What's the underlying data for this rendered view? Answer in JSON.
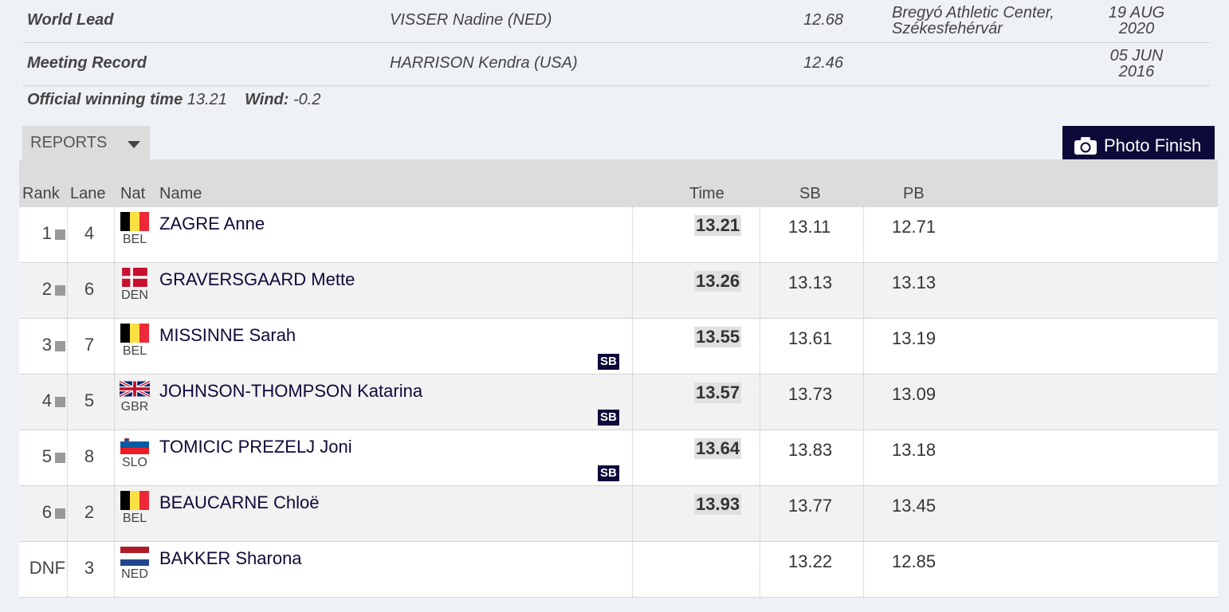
{
  "records": [
    {
      "label": "World Lead",
      "athlete": "VISSER Nadine (NED)",
      "time": "12.68",
      "venue_line1": "Bregyó Athletic Center,",
      "venue_line2": "Székesfehérvár",
      "date_line1": "19 AUG",
      "date_line2": "2020"
    },
    {
      "label": "Meeting Record",
      "athlete": "HARRISON Kendra (USA)",
      "time": "12.46",
      "venue_line1": "",
      "venue_line2": "",
      "date_line1": "05 JUN",
      "date_line2": "2016"
    }
  ],
  "winning": {
    "label": "Official winning time",
    "time": "13.21",
    "wind_label": "Wind:",
    "wind": "-0.2"
  },
  "reports_label": "REPORTS",
  "photo_finish_label": "Photo Finish",
  "columns": {
    "rank": "Rank",
    "lane": "Lane",
    "nat": "Nat",
    "name": "Name",
    "time": "Time",
    "sb": "SB",
    "pb": "PB"
  },
  "results": [
    {
      "rank": "1",
      "lane": "4",
      "nat": "BEL",
      "name": "ZAGRE Anne",
      "time": "13.21",
      "sb": "13.11",
      "pb": "12.71",
      "badge": ""
    },
    {
      "rank": "2",
      "lane": "6",
      "nat": "DEN",
      "name": "GRAVERSGAARD Mette",
      "time": "13.26",
      "sb": "13.13",
      "pb": "13.13",
      "badge": ""
    },
    {
      "rank": "3",
      "lane": "7",
      "nat": "BEL",
      "name": "MISSINNE Sarah",
      "time": "13.55",
      "sb": "13.61",
      "pb": "13.19",
      "badge": "SB"
    },
    {
      "rank": "4",
      "lane": "5",
      "nat": "GBR",
      "name": "JOHNSON-THOMPSON Katarina",
      "time": "13.57",
      "sb": "13.73",
      "pb": "13.09",
      "badge": "SB"
    },
    {
      "rank": "5",
      "lane": "8",
      "nat": "SLO",
      "name": "TOMICIC PREZELJ Joni",
      "time": "13.64",
      "sb": "13.83",
      "pb": "13.18",
      "badge": "SB"
    },
    {
      "rank": "6",
      "lane": "2",
      "nat": "BEL",
      "name": "BEAUCARNE Chloë",
      "time": "13.93",
      "sb": "13.77",
      "pb": "13.45",
      "badge": ""
    },
    {
      "rank": "DNF",
      "lane": "3",
      "nat": "NED",
      "name": "BAKKER Sharona",
      "time": "",
      "sb": "13.22",
      "pb": "12.85",
      "badge": ""
    }
  ],
  "icons": {
    "camera": "camera-icon",
    "caret": "caret-down-icon"
  }
}
